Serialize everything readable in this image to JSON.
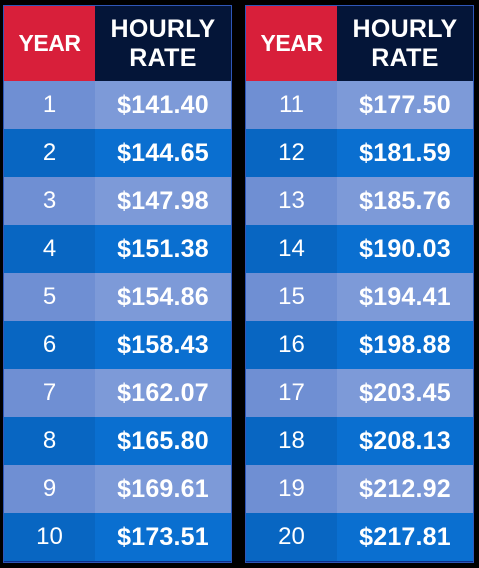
{
  "headers": {
    "year": "YEAR",
    "rate_line1": "HOURLY",
    "rate_line2": "RATE"
  },
  "left": [
    {
      "year": "1",
      "rate": "$141.40"
    },
    {
      "year": "2",
      "rate": "$144.65"
    },
    {
      "year": "3",
      "rate": "$147.98"
    },
    {
      "year": "4",
      "rate": "$151.38"
    },
    {
      "year": "5",
      "rate": "$154.86"
    },
    {
      "year": "6",
      "rate": "$158.43"
    },
    {
      "year": "7",
      "rate": "$162.07"
    },
    {
      "year": "8",
      "rate": "$165.80"
    },
    {
      "year": "9",
      "rate": "$169.61"
    },
    {
      "year": "10",
      "rate": "$173.51"
    }
  ],
  "right": [
    {
      "year": "11",
      "rate": "$177.50"
    },
    {
      "year": "12",
      "rate": "$181.59"
    },
    {
      "year": "13",
      "rate": "$185.76"
    },
    {
      "year": "14",
      "rate": "$190.03"
    },
    {
      "year": "15",
      "rate": "$194.41"
    },
    {
      "year": "16",
      "rate": "$198.88"
    },
    {
      "year": "17",
      "rate": "$203.45"
    },
    {
      "year": "18",
      "rate": "$208.13"
    },
    {
      "year": "19",
      "rate": "$212.92"
    },
    {
      "year": "20",
      "rate": "$217.81"
    }
  ],
  "colors": {
    "year_header": "#d81f3a",
    "rate_header": "#041538",
    "row_light": "#7d9ad8",
    "row_dark": "#0a6fd0"
  }
}
